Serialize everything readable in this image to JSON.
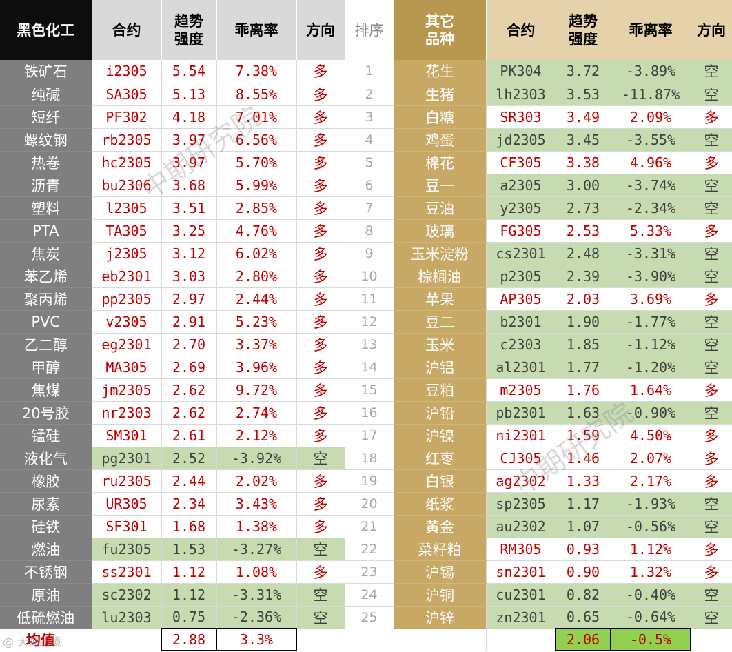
{
  "header": {
    "left_name": "黑色化工",
    "contract": "合约",
    "strength_l1": "趋势",
    "strength_l2": "强度",
    "deviation": "乖离率",
    "direction": "方向",
    "rank": "排序",
    "right_name_l1": "其它",
    "right_name_l2": "品种"
  },
  "left_rows": [
    {
      "name": "铁矿石",
      "code": "i2305",
      "strength": "5.54",
      "deviation": "7.38%",
      "dir": "多"
    },
    {
      "name": "纯碱",
      "code": "SA305",
      "strength": "5.13",
      "deviation": "8.55%",
      "dir": "多"
    },
    {
      "name": "短纤",
      "code": "PF302",
      "strength": "4.18",
      "deviation": "7.01%",
      "dir": "多"
    },
    {
      "name": "螺纹钢",
      "code": "rb2305",
      "strength": "3.97",
      "deviation": "6.56%",
      "dir": "多"
    },
    {
      "name": "热卷",
      "code": "hc2305",
      "strength": "3.97",
      "deviation": "5.70%",
      "dir": "多"
    },
    {
      "name": "沥青",
      "code": "bu2306",
      "strength": "3.68",
      "deviation": "5.99%",
      "dir": "多"
    },
    {
      "name": "塑料",
      "code": "l2305",
      "strength": "3.51",
      "deviation": "2.85%",
      "dir": "多"
    },
    {
      "name": "PTA",
      "code": "TA305",
      "strength": "3.25",
      "deviation": "4.76%",
      "dir": "多"
    },
    {
      "name": "焦炭",
      "code": "j2305",
      "strength": "3.12",
      "deviation": "6.02%",
      "dir": "多"
    },
    {
      "name": "苯乙烯",
      "code": "eb2301",
      "strength": "3.03",
      "deviation": "2.80%",
      "dir": "多"
    },
    {
      "name": "聚丙烯",
      "code": "pp2305",
      "strength": "2.97",
      "deviation": "2.44%",
      "dir": "多"
    },
    {
      "name": "PVC",
      "code": "v2305",
      "strength": "2.91",
      "deviation": "5.23%",
      "dir": "多"
    },
    {
      "name": "乙二醇",
      "code": "eg2301",
      "strength": "2.70",
      "deviation": "3.37%",
      "dir": "多"
    },
    {
      "name": "甲醇",
      "code": "MA305",
      "strength": "2.69",
      "deviation": "3.96%",
      "dir": "多"
    },
    {
      "name": "焦煤",
      "code": "jm2305",
      "strength": "2.62",
      "deviation": "9.72%",
      "dir": "多"
    },
    {
      "name": "20号胶",
      "code": "nr2303",
      "strength": "2.62",
      "deviation": "2.74%",
      "dir": "多"
    },
    {
      "name": "锰硅",
      "code": "SM301",
      "strength": "2.61",
      "deviation": "2.12%",
      "dir": "多"
    },
    {
      "name": "液化气",
      "code": "pg2301",
      "strength": "2.52",
      "deviation": "-3.92%",
      "dir": "空"
    },
    {
      "name": "橡胶",
      "code": "ru2305",
      "strength": "2.44",
      "deviation": "2.02%",
      "dir": "多"
    },
    {
      "name": "尿素",
      "code": "UR305",
      "strength": "2.34",
      "deviation": "3.43%",
      "dir": "多"
    },
    {
      "name": "硅铁",
      "code": "SF301",
      "strength": "1.68",
      "deviation": "1.38%",
      "dir": "多"
    },
    {
      "name": "燃油",
      "code": "fu2305",
      "strength": "1.53",
      "deviation": "-3.27%",
      "dir": "空"
    },
    {
      "name": "不锈钢",
      "code": "ss2301",
      "strength": "1.12",
      "deviation": "1.08%",
      "dir": "多"
    },
    {
      "name": "原油",
      "code": "sc2302",
      "strength": "1.12",
      "deviation": "-3.31%",
      "dir": "空"
    },
    {
      "name": "低硫燃油",
      "code": "lu2303",
      "strength": "0.75",
      "deviation": "-2.36%",
      "dir": "空"
    }
  ],
  "ranks": [
    "1",
    "2",
    "3",
    "4",
    "5",
    "6",
    "7",
    "8",
    "9",
    "10",
    "11",
    "12",
    "13",
    "14",
    "15",
    "16",
    "17",
    "18",
    "19",
    "20",
    "21",
    "22",
    "23",
    "24",
    "25"
  ],
  "right_rows": [
    {
      "name": "花生",
      "code": "PK304",
      "strength": "3.72",
      "deviation": "-3.89%",
      "dir": "空"
    },
    {
      "name": "生猪",
      "code": "lh2303",
      "strength": "3.53",
      "deviation": "-11.87%",
      "dir": "空"
    },
    {
      "name": "白糖",
      "code": "SR303",
      "strength": "3.49",
      "deviation": "2.09%",
      "dir": "多"
    },
    {
      "name": "鸡蛋",
      "code": "jd2305",
      "strength": "3.45",
      "deviation": "-3.55%",
      "dir": "空"
    },
    {
      "name": "棉花",
      "code": "CF305",
      "strength": "3.38",
      "deviation": "4.96%",
      "dir": "多"
    },
    {
      "name": "豆一",
      "code": "a2305",
      "strength": "3.00",
      "deviation": "-3.74%",
      "dir": "空"
    },
    {
      "name": "豆油",
      "code": "y2305",
      "strength": "2.73",
      "deviation": "-2.34%",
      "dir": "空"
    },
    {
      "name": "玻璃",
      "code": "FG305",
      "strength": "2.53",
      "deviation": "5.33%",
      "dir": "多"
    },
    {
      "name": "玉米淀粉",
      "code": "cs2301",
      "strength": "2.48",
      "deviation": "-3.31%",
      "dir": "空"
    },
    {
      "name": "棕榈油",
      "code": "p2305",
      "strength": "2.39",
      "deviation": "-3.90%",
      "dir": "空"
    },
    {
      "name": "苹果",
      "code": "AP305",
      "strength": "2.03",
      "deviation": "3.69%",
      "dir": "多"
    },
    {
      "name": "豆二",
      "code": "b2301",
      "strength": "1.90",
      "deviation": "-1.77%",
      "dir": "空"
    },
    {
      "name": "玉米",
      "code": "c2303",
      "strength": "1.85",
      "deviation": "-1.12%",
      "dir": "空"
    },
    {
      "name": "沪铝",
      "code": "al2301",
      "strength": "1.77",
      "deviation": "-1.20%",
      "dir": "空"
    },
    {
      "name": "豆粕",
      "code": "m2305",
      "strength": "1.76",
      "deviation": "1.64%",
      "dir": "多"
    },
    {
      "name": "沪铅",
      "code": "pb2301",
      "strength": "1.63",
      "deviation": "-0.90%",
      "dir": "空"
    },
    {
      "name": "沪镍",
      "code": "ni2301",
      "strength": "1.59",
      "deviation": "4.50%",
      "dir": "多"
    },
    {
      "name": "红枣",
      "code": "CJ305",
      "strength": "1.46",
      "deviation": "2.07%",
      "dir": "多"
    },
    {
      "name": "白银",
      "code": "ag2302",
      "strength": "1.33",
      "deviation": "2.17%",
      "dir": "多"
    },
    {
      "name": "纸浆",
      "code": "sp2305",
      "strength": "1.17",
      "deviation": "-1.93%",
      "dir": "空"
    },
    {
      "name": "黄金",
      "code": "au2302",
      "strength": "1.07",
      "deviation": "-0.56%",
      "dir": "空"
    },
    {
      "name": "菜籽粕",
      "code": "RM305",
      "strength": "0.93",
      "deviation": "1.12%",
      "dir": "多"
    },
    {
      "name": "沪锡",
      "code": "sn2301",
      "strength": "0.90",
      "deviation": "1.32%",
      "dir": "多"
    },
    {
      "name": "沪铜",
      "code": "cu2301",
      "strength": "0.82",
      "deviation": "-0.40%",
      "dir": "空"
    },
    {
      "name": "沪锌",
      "code": "zn2301",
      "strength": "0.65",
      "deviation": "-0.64%",
      "dir": "空"
    }
  ],
  "average": {
    "label": "均值",
    "left_strength": "2.88",
    "left_deviation": "3.3%",
    "right_strength": "2.06",
    "right_deviation": "-0.5%"
  },
  "watermark": "中期研究院",
  "source_mark": "@ 大师跨境",
  "colors": {
    "long_text": "#c00000",
    "short_bg": "#c6dbb0",
    "left_name_bg": "#7f7f7f",
    "right_name_bg": "#c8a865",
    "header_black": "#0d0d0d",
    "header_gold": "#b8974f",
    "average_green": "#92d050"
  }
}
